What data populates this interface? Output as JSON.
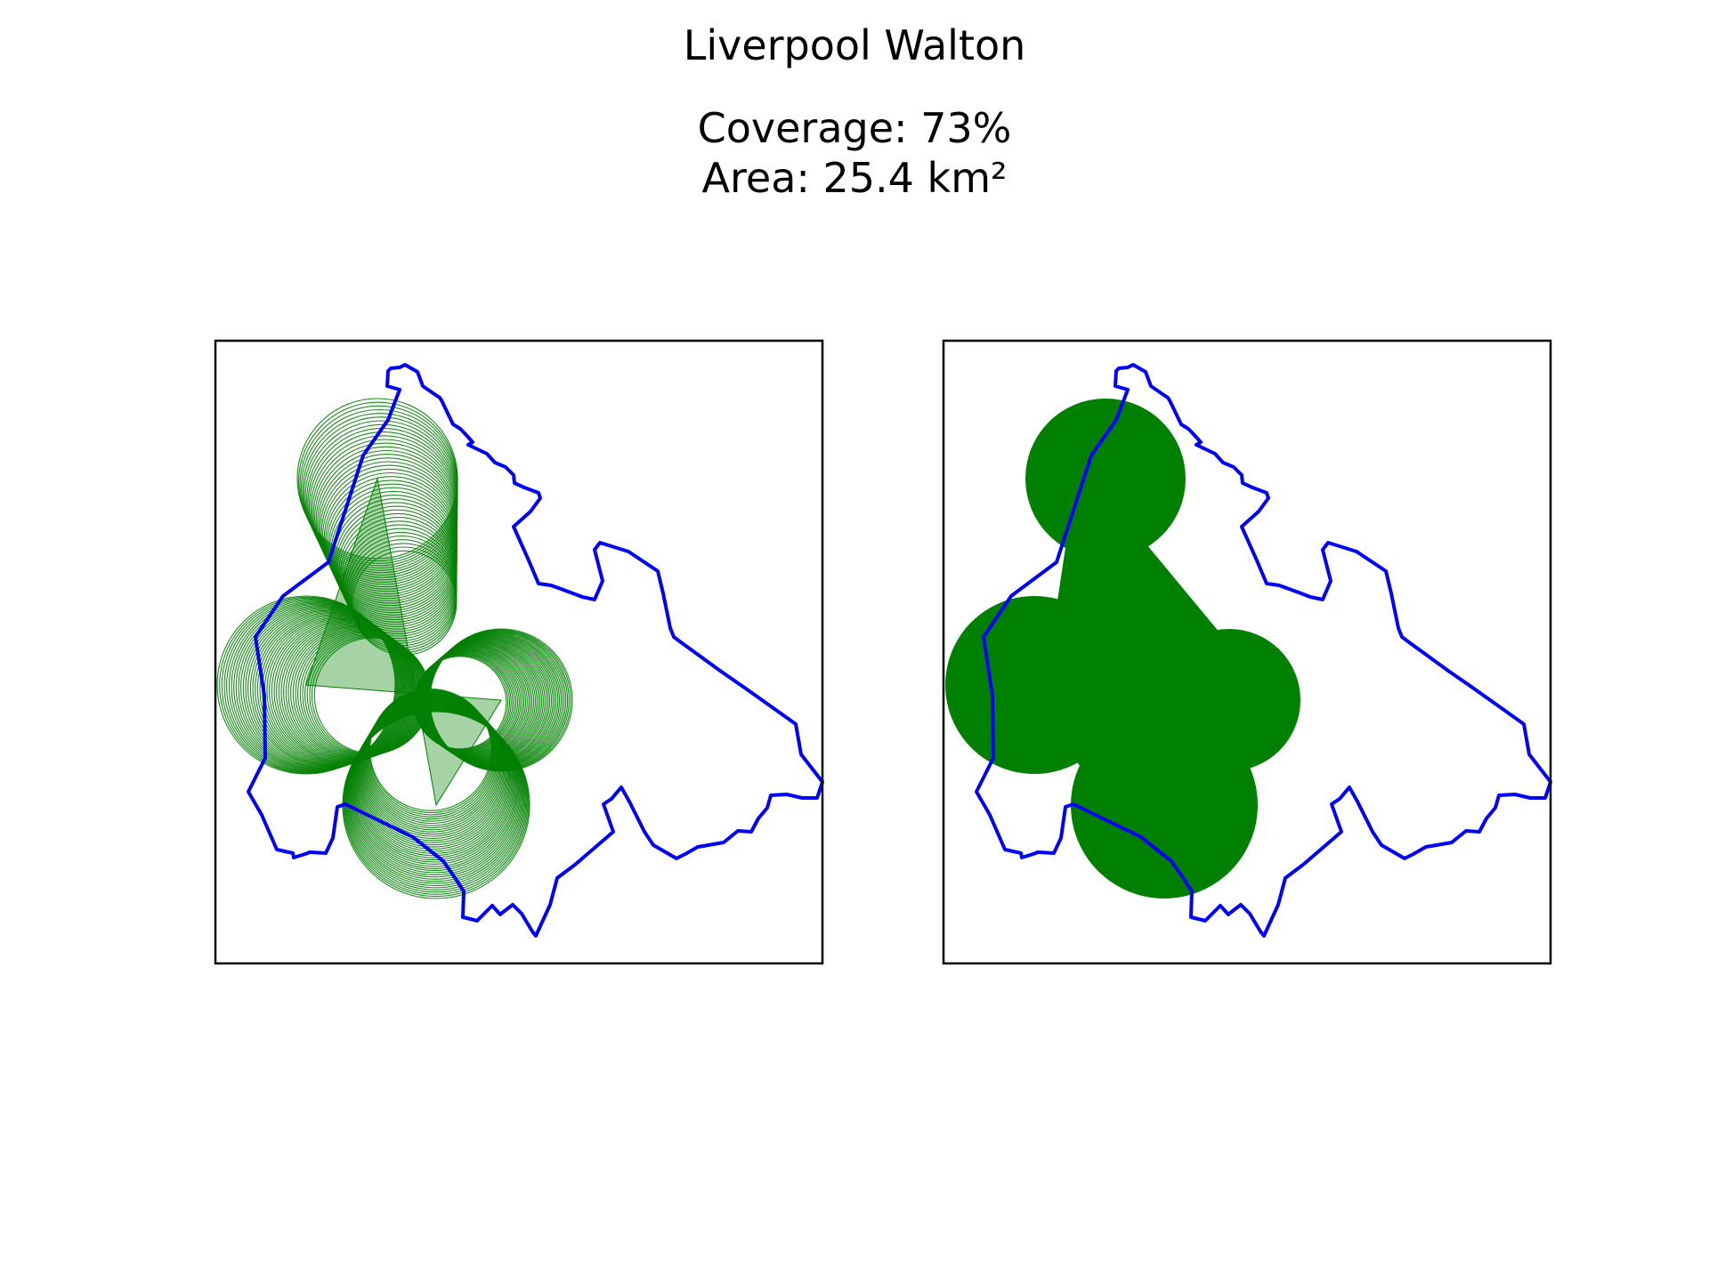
{
  "title": "Liverpool Walton",
  "coverage": "Coverage: 73%",
  "area": "Area: 25.4 km²",
  "colors": {
    "boundary": "#0000ff",
    "coverage": "#008000",
    "frame": "#000000"
  },
  "panels": [
    {
      "style": "outlines"
    },
    {
      "style": "filled"
    }
  ]
}
